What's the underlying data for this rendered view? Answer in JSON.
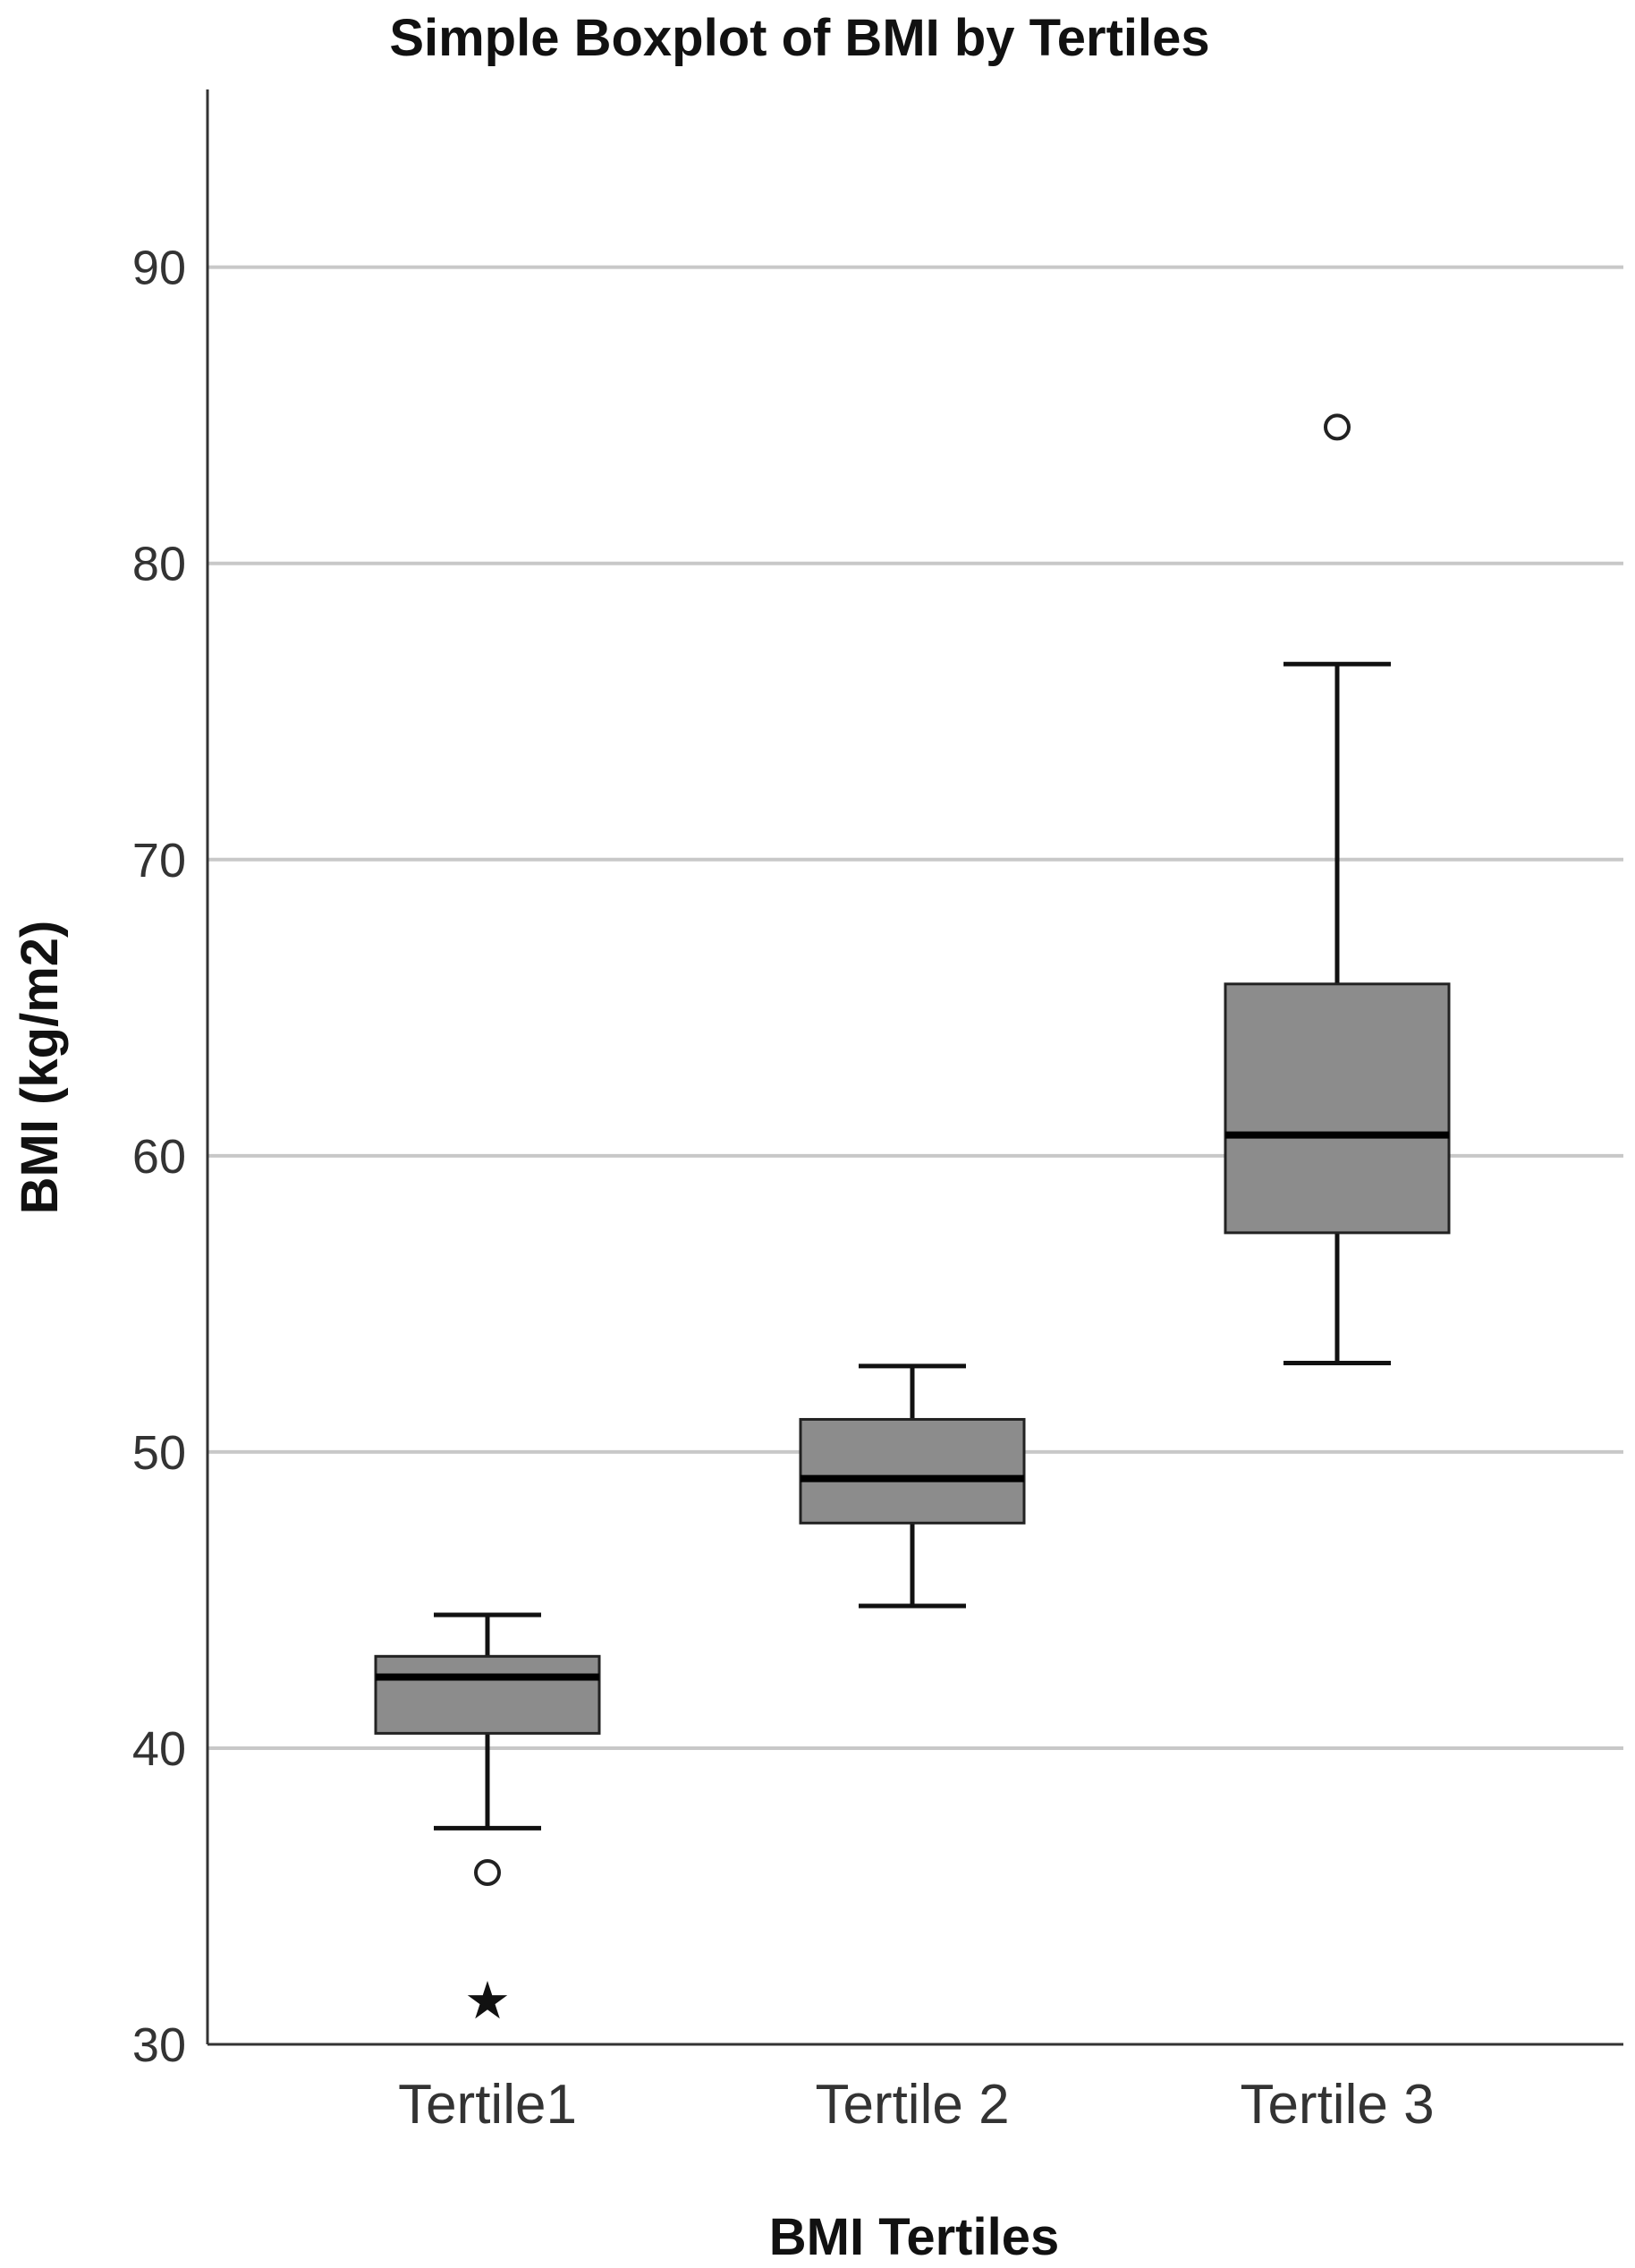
{
  "chart_data": {
    "type": "boxplot",
    "title": "Simple Boxplot of BMI by Tertiles",
    "xlabel": "BMI Tertiles",
    "ylabel": "BMI (kg/m2)",
    "ylim": [
      30,
      96
    ],
    "yticks": [
      30,
      40,
      50,
      60,
      70,
      80,
      90
    ],
    "grid": true,
    "colors": {
      "box_fill": "#8c8c8c",
      "grid": "#c8c8c8"
    },
    "categories": [
      "Tertile1",
      "Tertile 2",
      "Tertile 3"
    ],
    "boxes": [
      {
        "category": "Tertile1",
        "whisker_low": 37.3,
        "q1": 40.5,
        "median": 42.4,
        "q3": 43.1,
        "whisker_high": 44.5,
        "outliers": [
          35.8
        ],
        "extremes": [
          31.6
        ]
      },
      {
        "category": "Tertile 2",
        "whisker_low": 44.8,
        "q1": 47.6,
        "median": 49.1,
        "q3": 51.1,
        "whisker_high": 52.9,
        "outliers": [],
        "extremes": []
      },
      {
        "category": "Tertile 3",
        "whisker_low": 53.0,
        "q1": 57.4,
        "median": 60.7,
        "q3": 65.8,
        "whisker_high": 76.6,
        "outliers": [
          84.6
        ],
        "extremes": []
      }
    ]
  }
}
